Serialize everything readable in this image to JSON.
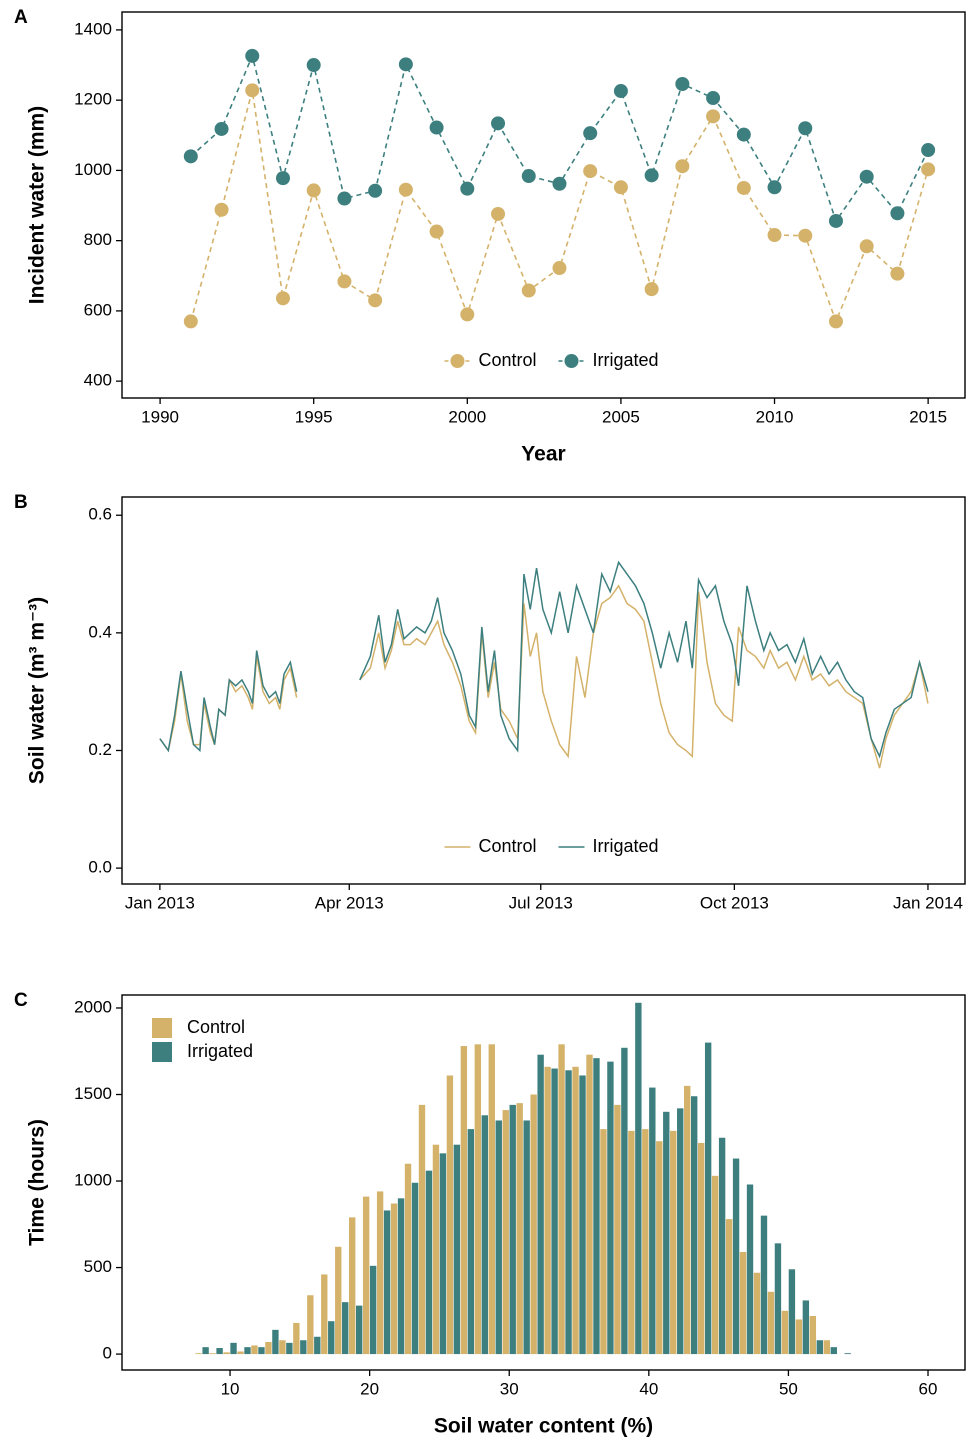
{
  "chart_data": [
    {
      "type": "line",
      "panel_label": "A",
      "y_label": "Incident water (mm)",
      "x_label": "Year",
      "x": [
        1991,
        1992,
        1993,
        1994,
        1995,
        1996,
        1997,
        1998,
        1999,
        2000,
        2001,
        2002,
        2003,
        2004,
        2005,
        2006,
        2007,
        2008,
        2009,
        2010,
        2011,
        2012,
        2013,
        2014,
        2015
      ],
      "series": [
        {
          "name": "Control",
          "color": "#d4b26a",
          "values": [
            570,
            888,
            1228,
            636,
            943,
            684,
            630,
            945,
            826,
            590,
            876,
            658,
            722,
            998,
            952,
            662,
            1012,
            1154,
            950,
            816,
            814,
            570,
            784,
            706,
            1003
          ]
        },
        {
          "name": "Irrigated",
          "color": "#3d7f7f",
          "values": [
            1040,
            1118,
            1326,
            978,
            1300,
            920,
            942,
            1302,
            1122,
            948,
            1134,
            984,
            962,
            1106,
            1226,
            986,
            1246,
            1206,
            1102,
            952,
            1120,
            856,
            982,
            878,
            1058
          ]
        }
      ],
      "xlim": [
        1988.76,
        2016.2
      ],
      "xticks": [
        1990,
        1995,
        2000,
        2005,
        2010,
        2015
      ],
      "ylim": [
        352,
        1451
      ],
      "yticks": [
        400,
        600,
        800,
        1000,
        1200,
        1400
      ],
      "markers": true,
      "linestyle": "dashed",
      "legend": "bottom"
    },
    {
      "type": "line",
      "panel_label": "B",
      "y_label": "Soil water (m³ m⁻³)",
      "x": [
        0,
        4,
        7,
        10,
        13,
        16,
        19,
        21,
        24,
        26,
        28,
        31,
        33,
        36,
        39,
        42,
        44,
        46,
        49,
        52,
        55,
        57,
        59,
        62,
        65,
        80,
        95,
        100,
        104,
        107,
        110,
        113,
        116,
        119,
        122,
        126,
        129,
        132,
        135,
        139,
        143,
        147,
        150,
        153,
        156,
        159,
        162,
        166,
        170,
        173,
        176,
        179,
        182,
        186,
        190,
        194,
        198,
        202,
        206,
        210,
        214,
        218,
        222,
        226,
        230,
        234,
        238,
        242,
        246,
        250,
        253,
        256,
        260,
        264,
        268,
        272,
        275,
        279,
        283,
        287,
        290,
        294,
        298,
        302,
        306,
        310,
        314,
        318,
        322,
        326,
        330,
        334,
        338,
        342,
        345,
        349,
        353,
        357,
        361,
        365
      ],
      "series": [
        {
          "name": "Control",
          "color": "#d4b26a",
          "values": [
            0.22,
            0.2,
            0.25,
            0.33,
            0.25,
            0.21,
            0.21,
            0.28,
            0.23,
            0.21,
            0.27,
            0.26,
            0.32,
            0.3,
            0.31,
            0.29,
            0.27,
            0.36,
            0.3,
            0.28,
            0.29,
            0.27,
            0.32,
            0.34,
            0.29,
            null,
            0.32,
            0.34,
            0.4,
            0.34,
            0.37,
            0.42,
            0.38,
            0.38,
            0.39,
            0.38,
            0.4,
            0.42,
            0.38,
            0.35,
            0.31,
            0.25,
            0.23,
            0.4,
            0.29,
            0.35,
            0.27,
            0.25,
            0.22,
            0.45,
            0.36,
            0.4,
            0.3,
            0.25,
            0.21,
            0.19,
            0.36,
            0.29,
            0.4,
            0.45,
            0.46,
            0.48,
            0.45,
            0.44,
            0.42,
            0.35,
            0.28,
            0.23,
            0.21,
            0.2,
            0.19,
            0.47,
            0.35,
            0.28,
            0.26,
            0.25,
            0.41,
            0.37,
            0.36,
            0.34,
            0.37,
            0.34,
            0.35,
            0.32,
            0.36,
            0.32,
            0.33,
            0.31,
            0.32,
            0.3,
            0.29,
            0.28,
            0.22,
            0.17,
            0.22,
            0.26,
            0.28,
            0.3,
            0.35,
            0.28
          ]
        },
        {
          "name": "Irrigated",
          "color": "#3d7f7f",
          "values": [
            0.22,
            0.2,
            0.26,
            0.335,
            0.27,
            0.21,
            0.2,
            0.29,
            0.24,
            0.21,
            0.27,
            0.26,
            0.32,
            0.31,
            0.32,
            0.3,
            0.28,
            0.37,
            0.31,
            0.29,
            0.3,
            0.28,
            0.33,
            0.35,
            0.3,
            null,
            0.32,
            0.36,
            0.43,
            0.35,
            0.38,
            0.44,
            0.39,
            0.4,
            0.41,
            0.4,
            0.42,
            0.46,
            0.4,
            0.37,
            0.33,
            0.26,
            0.24,
            0.41,
            0.3,
            0.37,
            0.26,
            0.22,
            0.2,
            0.5,
            0.44,
            0.51,
            0.44,
            0.4,
            0.47,
            0.4,
            0.48,
            0.44,
            0.4,
            0.5,
            0.47,
            0.52,
            0.5,
            0.48,
            0.45,
            0.4,
            0.34,
            0.4,
            0.35,
            0.42,
            0.34,
            0.49,
            0.46,
            0.48,
            0.42,
            0.38,
            0.31,
            0.48,
            0.42,
            0.37,
            0.4,
            0.37,
            0.38,
            0.35,
            0.39,
            0.33,
            0.36,
            0.33,
            0.35,
            0.32,
            0.3,
            0.29,
            0.22,
            0.19,
            0.23,
            0.27,
            0.28,
            0.29,
            0.35,
            0.3
          ]
        }
      ],
      "xlim": [
        -18,
        382.6
      ],
      "xticks": [
        {
          "value": 0,
          "label": "Jan 2013"
        },
        {
          "value": 90,
          "label": "Apr 2013"
        },
        {
          "value": 181,
          "label": "Jul 2013"
        },
        {
          "value": 273,
          "label": "Oct 2013"
        },
        {
          "value": 365,
          "label": "Jan 2014"
        }
      ],
      "ylim": [
        -0.027,
        0.631
      ],
      "yticks": [
        {
          "value": 0,
          "label": "0.0"
        },
        0.2,
        0.4,
        0.6
      ],
      "markers": false,
      "linestyle": "solid",
      "legend": "bottom"
    },
    {
      "type": "histogram",
      "panel_label": "C",
      "y_label": "Time (hours)",
      "x_label": "Soil water content (%)",
      "bins": [
        4.5,
        5.5,
        6.5,
        7.5,
        8.5,
        9.5,
        10.5,
        11.5,
        12.5,
        13.5,
        14.5,
        15.5,
        16.5,
        17.5,
        18.5,
        19.5,
        20.5,
        21.5,
        22.5,
        23.5,
        24.5,
        25.5,
        26.5,
        27.5,
        28.5,
        29.5,
        30.5,
        31.5,
        32.5,
        33.5,
        34.5,
        35.5,
        36.5,
        37.5,
        38.5,
        39.5,
        40.5,
        41.5,
        42.5,
        43.5,
        44.5,
        45.5,
        46.5,
        47.5,
        48.5,
        49.5,
        50.5,
        51.5,
        52.5,
        53.5,
        54.5,
        55.5,
        56.5,
        57.5,
        58.5,
        59.5,
        60.5
      ],
      "series": [
        {
          "name": "Control",
          "color": "#d4b26a",
          "values": [
            0,
            0,
            0,
            5,
            5,
            10,
            15,
            50,
            70,
            80,
            180,
            340,
            460,
            620,
            790,
            910,
            940,
            870,
            1100,
            1440,
            1210,
            1610,
            1780,
            1790,
            1790,
            1410,
            1450,
            1500,
            1660,
            1790,
            1660,
            1730,
            1300,
            1440,
            1290,
            1300,
            1230,
            1290,
            1550,
            1220,
            1030,
            780,
            590,
            470,
            360,
            250,
            200,
            220,
            80,
            0,
            0,
            0,
            0,
            0,
            0,
            0
          ]
        },
        {
          "name": "Irrigated",
          "color": "#3d7f7f",
          "values": [
            0,
            0,
            0,
            40,
            35,
            65,
            40,
            40,
            140,
            65,
            80,
            100,
            190,
            300,
            280,
            510,
            830,
            900,
            990,
            1060,
            1160,
            1210,
            1300,
            1380,
            1350,
            1440,
            1350,
            1730,
            1650,
            1640,
            1610,
            1710,
            1690,
            1770,
            2030,
            1540,
            1400,
            1420,
            1490,
            1800,
            1250,
            1130,
            980,
            800,
            640,
            490,
            310,
            80,
            40,
            5,
            0,
            0,
            0,
            0,
            0,
            0
          ]
        }
      ],
      "xlim": [
        2.26,
        62.65
      ],
      "xticks": [
        10,
        20,
        30,
        40,
        50,
        60
      ],
      "ylim": [
        -92,
        2075
      ],
      "yticks": [
        0,
        500,
        1000,
        1500,
        2000
      ],
      "legend": "top-left"
    }
  ]
}
